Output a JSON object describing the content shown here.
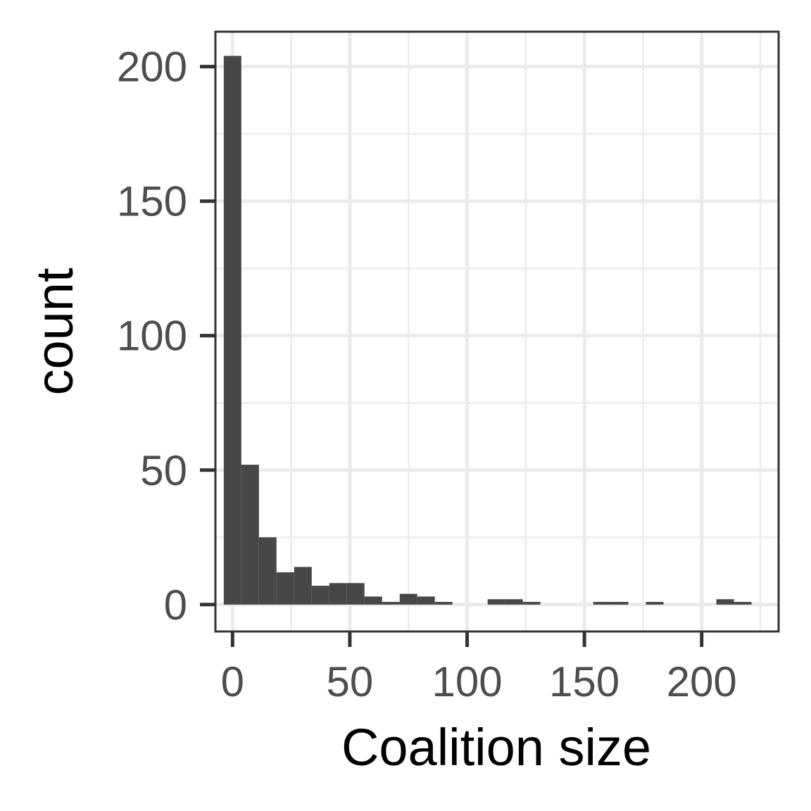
{
  "chart_data": {
    "type": "bar",
    "subtype": "histogram",
    "xlabel": "Coalition size",
    "ylabel": "count",
    "xlim": [
      -7.3,
      232.8
    ],
    "ylim": [
      -10,
      213
    ],
    "x_ticks": [
      0,
      50,
      100,
      150,
      200
    ],
    "y_ticks": [
      0,
      50,
      100,
      150,
      200
    ],
    "x_minor_gridlines": [
      25,
      75,
      125,
      175,
      225
    ],
    "y_minor_gridlines": [
      25,
      75,
      125,
      175
    ],
    "grid": true,
    "bin_width": 7.5,
    "bins": [
      {
        "start": -3.75,
        "end": 3.75,
        "count": 204
      },
      {
        "start": 3.75,
        "end": 11.25,
        "count": 52
      },
      {
        "start": 11.25,
        "end": 18.75,
        "count": 25
      },
      {
        "start": 18.75,
        "end": 26.25,
        "count": 12
      },
      {
        "start": 26.25,
        "end": 33.75,
        "count": 14
      },
      {
        "start": 33.75,
        "end": 41.25,
        "count": 7
      },
      {
        "start": 41.25,
        "end": 48.75,
        "count": 8
      },
      {
        "start": 48.75,
        "end": 56.25,
        "count": 8
      },
      {
        "start": 56.25,
        "end": 63.75,
        "count": 3
      },
      {
        "start": 63.75,
        "end": 71.25,
        "count": 1
      },
      {
        "start": 71.25,
        "end": 78.75,
        "count": 4
      },
      {
        "start": 78.75,
        "end": 86.25,
        "count": 3
      },
      {
        "start": 86.25,
        "end": 93.75,
        "count": 1
      },
      {
        "start": 108.75,
        "end": 116.25,
        "count": 2
      },
      {
        "start": 116.25,
        "end": 123.75,
        "count": 2
      },
      {
        "start": 123.75,
        "end": 131.25,
        "count": 1
      },
      {
        "start": 153.75,
        "end": 161.25,
        "count": 1
      },
      {
        "start": 161.25,
        "end": 168.75,
        "count": 1
      },
      {
        "start": 176.25,
        "end": 183.75,
        "count": 1
      },
      {
        "start": 206.25,
        "end": 213.75,
        "count": 2
      },
      {
        "start": 213.75,
        "end": 221.25,
        "count": 1
      }
    ],
    "colors": {
      "bar": "#474747",
      "panel_background": "#ffffff",
      "major_grid": "#ebebeb",
      "minor_grid": "#ebebeb",
      "border": "#333333",
      "tick_text": "#4d4d4d",
      "title_text": "#000000"
    }
  }
}
